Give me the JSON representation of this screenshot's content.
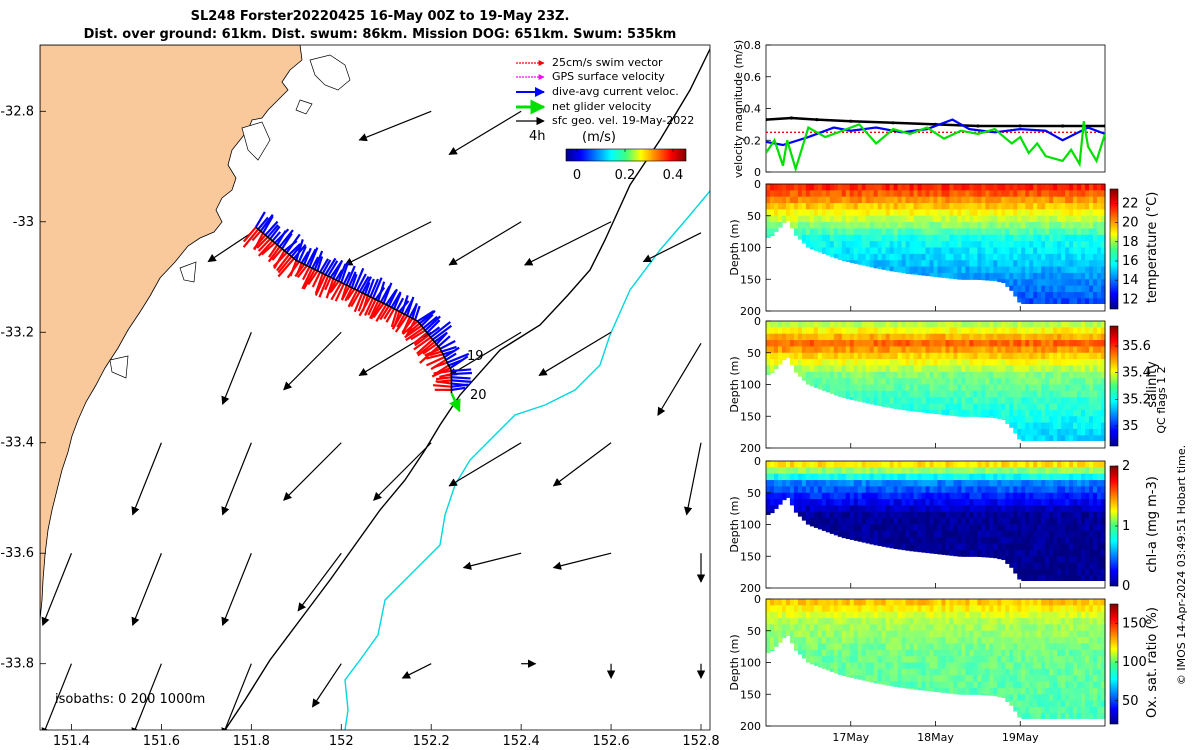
{
  "title": {
    "line1": "SL248 Forster20220425 16-May 00Z to 19-May 23Z.",
    "line2": "Dist. over ground: 61km. Dist. swum: 86km. Mission DOG: 651km. Swum: 535km"
  },
  "colors": {
    "land": "#f9c89b",
    "swim_vector": "#ff0000",
    "gps_velocity": "#ff00ff",
    "current": "#0000ff",
    "net_velocity": "#00e000",
    "geo_vel": "#000000",
    "isobath_200": "#000000",
    "isobath_1000": "#00d8e0"
  },
  "chart_data": [
    {
      "id": "map",
      "type": "scatter",
      "xlabel": "longitude",
      "ylabel": "latitude",
      "xlim": [
        151.33,
        152.82
      ],
      "ylim": [
        -33.92,
        -32.68
      ],
      "xticks": [
        "151.4",
        "151.6",
        "151.8",
        "152",
        "152.2",
        "152.4",
        "152.6",
        "152.8"
      ],
      "yticks": [
        "-32.8",
        "-33",
        "-33.2",
        "-33.4",
        "-33.6",
        "-33.8"
      ],
      "legend": {
        "placement": "top-right",
        "items": [
          "25cm/s swim vector",
          "GPS surface velocity",
          "dive-avg current veloc.",
          "net glider velocity",
          "sfc geo. vel. 19-May-2022"
        ],
        "tag": "4h"
      },
      "colorbar": {
        "label": "(m/s)",
        "ticks": [
          "0",
          "0.2",
          "0.4"
        ],
        "range": [
          0,
          0.5
        ]
      },
      "track_labels": [
        "19",
        "20"
      ],
      "isobath_note": "isobaths: 0   200  1000m",
      "track": [
        {
          "lon": 151.81,
          "lat": -33.01
        },
        {
          "lon": 151.9,
          "lat": -33.07
        },
        {
          "lon": 152.0,
          "lat": -33.11
        },
        {
          "lon": 152.1,
          "lat": -33.15
        },
        {
          "lon": 152.17,
          "lat": -33.18
        },
        {
          "lon": 152.22,
          "lat": -33.23
        },
        {
          "lon": 152.245,
          "lat": -33.27
        },
        {
          "lon": 152.245,
          "lat": -33.31
        }
      ],
      "geo_vectors": [
        {
          "lon": 152.2,
          "lat": -32.8,
          "u": -0.05,
          "v": -0.02
        },
        {
          "lon": 152.4,
          "lat": -32.8,
          "u": -0.05,
          "v": -0.03
        },
        {
          "lon": 151.8,
          "lat": -33.02,
          "u": -0.03,
          "v": -0.02
        },
        {
          "lon": 152.2,
          "lat": -33.0,
          "u": -0.06,
          "v": -0.03
        },
        {
          "lon": 152.4,
          "lat": -33.0,
          "u": -0.05,
          "v": -0.03
        },
        {
          "lon": 152.6,
          "lat": -33.0,
          "u": -0.06,
          "v": -0.03
        },
        {
          "lon": 152.8,
          "lat": -33.02,
          "u": -0.04,
          "v": -0.02
        },
        {
          "lon": 151.8,
          "lat": -33.2,
          "u": -0.02,
          "v": -0.05
        },
        {
          "lon": 152.0,
          "lat": -33.2,
          "u": -0.04,
          "v": -0.04
        },
        {
          "lon": 152.2,
          "lat": -33.2,
          "u": -0.05,
          "v": -0.03
        },
        {
          "lon": 152.4,
          "lat": -33.2,
          "u": -0.05,
          "v": -0.03
        },
        {
          "lon": 152.6,
          "lat": -33.2,
          "u": -0.05,
          "v": -0.03
        },
        {
          "lon": 152.8,
          "lat": -33.22,
          "u": -0.03,
          "v": -0.05
        },
        {
          "lon": 151.6,
          "lat": -33.4,
          "u": -0.02,
          "v": -0.05
        },
        {
          "lon": 151.8,
          "lat": -33.4,
          "u": -0.02,
          "v": -0.05
        },
        {
          "lon": 152.0,
          "lat": -33.4,
          "u": -0.04,
          "v": -0.04
        },
        {
          "lon": 152.2,
          "lat": -33.4,
          "u": -0.04,
          "v": -0.04
        },
        {
          "lon": 152.4,
          "lat": -33.4,
          "u": -0.05,
          "v": -0.03
        },
        {
          "lon": 152.6,
          "lat": -33.4,
          "u": -0.04,
          "v": -0.03
        },
        {
          "lon": 152.8,
          "lat": -33.4,
          "u": -0.01,
          "v": -0.05
        },
        {
          "lon": 151.4,
          "lat": -33.6,
          "u": -0.02,
          "v": -0.05
        },
        {
          "lon": 151.6,
          "lat": -33.6,
          "u": -0.02,
          "v": -0.05
        },
        {
          "lon": 151.8,
          "lat": -33.6,
          "u": -0.02,
          "v": -0.05
        },
        {
          "lon": 152.0,
          "lat": -33.6,
          "u": -0.03,
          "v": -0.04
        },
        {
          "lon": 152.4,
          "lat": -33.6,
          "u": -0.04,
          "v": -0.01
        },
        {
          "lon": 152.6,
          "lat": -33.6,
          "u": -0.04,
          "v": -0.01
        },
        {
          "lon": 152.8,
          "lat": -33.6,
          "u": 0.0,
          "v": -0.02
        },
        {
          "lon": 151.4,
          "lat": -33.8,
          "u": -0.02,
          "v": -0.05
        },
        {
          "lon": 151.6,
          "lat": -33.8,
          "u": -0.02,
          "v": -0.05
        },
        {
          "lon": 151.8,
          "lat": -33.8,
          "u": -0.02,
          "v": -0.05
        },
        {
          "lon": 152.0,
          "lat": -33.8,
          "u": -0.02,
          "v": -0.03
        },
        {
          "lon": 152.2,
          "lat": -33.8,
          "u": -0.02,
          "v": -0.01
        },
        {
          "lon": 152.4,
          "lat": -33.8,
          "u": 0.01,
          "v": 0.0
        },
        {
          "lon": 152.6,
          "lat": -33.8,
          "u": 0.0,
          "v": -0.01
        },
        {
          "lon": 152.8,
          "lat": -33.8,
          "u": 0.0,
          "v": -0.01
        }
      ]
    },
    {
      "id": "velocity",
      "type": "line",
      "ylabel": "velocity magnitude (m/s)",
      "xlim": [
        16.0,
        20.0
      ],
      "ylim": [
        0,
        0.8
      ],
      "yticks": [
        "0",
        "0.2",
        "0.4",
        "0.6",
        "0.8"
      ],
      "series": [
        {
          "name": "sfc geo. vel.",
          "x": [
            16.0,
            16.3,
            16.6,
            17.0,
            17.5,
            18.0,
            18.5,
            19.0,
            19.5,
            20.0
          ],
          "values": [
            0.33,
            0.34,
            0.33,
            0.32,
            0.31,
            0.3,
            0.29,
            0.29,
            0.29,
            0.29
          ]
        },
        {
          "name": "swim vector",
          "x": [
            16.0,
            16.5,
            17.0,
            17.5,
            18.0,
            18.5,
            19.0,
            19.5,
            20.0
          ],
          "values": [
            0.25,
            0.25,
            0.25,
            0.25,
            0.25,
            0.25,
            0.25,
            0.25,
            0.25
          ]
        },
        {
          "name": "dive-avg current",
          "x": [
            16.0,
            16.2,
            16.5,
            16.8,
            17.0,
            17.3,
            17.6,
            17.9,
            18.2,
            18.4,
            18.7,
            19.0,
            19.3,
            19.5,
            19.8,
            20.0
          ],
          "values": [
            0.19,
            0.17,
            0.22,
            0.28,
            0.26,
            0.28,
            0.25,
            0.27,
            0.33,
            0.27,
            0.25,
            0.27,
            0.26,
            0.2,
            0.28,
            0.24
          ]
        },
        {
          "name": "net glider velocity",
          "x": [
            16.0,
            16.1,
            16.2,
            16.25,
            16.35,
            16.5,
            16.7,
            16.9,
            17.1,
            17.3,
            17.5,
            17.7,
            17.9,
            18.1,
            18.3,
            18.5,
            18.7,
            18.9,
            19.0,
            19.1,
            19.2,
            19.3,
            19.5,
            19.6,
            19.7,
            19.75,
            19.8,
            19.9,
            20.0
          ],
          "values": [
            0.12,
            0.2,
            0.04,
            0.2,
            0.02,
            0.28,
            0.22,
            0.26,
            0.3,
            0.18,
            0.27,
            0.24,
            0.28,
            0.21,
            0.26,
            0.24,
            0.27,
            0.18,
            0.22,
            0.12,
            0.18,
            0.1,
            0.07,
            0.14,
            0.05,
            0.32,
            0.16,
            0.07,
            0.24
          ]
        }
      ]
    },
    {
      "id": "temperature",
      "type": "heatmap",
      "ylabel": "Depth (m)",
      "cbar_label": "temperature (°C)",
      "ylim": [
        0,
        200
      ],
      "yticks": [
        "0",
        "50",
        "100",
        "150",
        "200"
      ],
      "cticks": [
        "12",
        "14",
        "16",
        "18",
        "20",
        "22"
      ],
      "crange": [
        11,
        23.5
      ],
      "surface_value": 21.5,
      "mid_value": 19.5,
      "deep_value": 16.0,
      "bottom_value": 13.5
    },
    {
      "id": "salinity",
      "type": "heatmap",
      "ylabel": "Depth (m)",
      "cbar_label": "salinity",
      "ylim": [
        0,
        200
      ],
      "yticks": [
        "0",
        "50",
        "100",
        "150",
        "200"
      ],
      "cticks": [
        "35",
        "35.2",
        "35.4",
        "35.6"
      ],
      "crange": [
        34.85,
        35.75
      ],
      "surface_value": 35.35,
      "mid_value": 35.55,
      "deep_value": 35.3,
      "bottom_value": 35.15
    },
    {
      "id": "chla",
      "type": "heatmap",
      "ylabel": "Depth (m)",
      "cbar_label": "chl-a (mg m-3)",
      "ylim": [
        0,
        200
      ],
      "yticks": [
        "0",
        "50",
        "100",
        "150",
        "200"
      ],
      "cticks": [
        "0",
        "1",
        "2"
      ],
      "crange": [
        0,
        2
      ],
      "surface_value": 1.3,
      "mid_value": 0.5,
      "deep_value": 0.05,
      "bottom_value": 0.02
    },
    {
      "id": "oxygen",
      "type": "heatmap",
      "ylabel": "Depth (m)",
      "cbar_label": "Ox. sat. ratio (%)",
      "ylim": [
        0,
        200
      ],
      "yticks": [
        "0",
        "50",
        "100",
        "150",
        "200"
      ],
      "cticks": [
        "50",
        "100",
        "150"
      ],
      "crange": [
        20,
        175
      ],
      "surface_value": 125,
      "mid_value": 105,
      "deep_value": 95,
      "bottom_value": 90
    }
  ],
  "bottom_depth": {
    "days": [
      16.05,
      16.15,
      16.25,
      16.35,
      16.5,
      16.7,
      16.9,
      17.1,
      17.3,
      17.5,
      17.7,
      17.9,
      18.1,
      18.3,
      18.5,
      18.7,
      18.8,
      18.9,
      19.0,
      19.2,
      19.5,
      19.8,
      20.0
    ],
    "depth": [
      84,
      70,
      55,
      80,
      100,
      110,
      120,
      126,
      132,
      137,
      141,
      144,
      147,
      150,
      150,
      152,
      155,
      168,
      188,
      188,
      188,
      188,
      188
    ]
  },
  "time_axis": {
    "ticks": [
      "17May",
      "18May",
      "19May"
    ],
    "tick_days": [
      17,
      18,
      19
    ],
    "range": [
      16.0,
      20.0
    ]
  },
  "side_note": "QC flags 1  2",
  "footer": "© IMOS 14-Apr-2024 03:49:51 Hobart time."
}
